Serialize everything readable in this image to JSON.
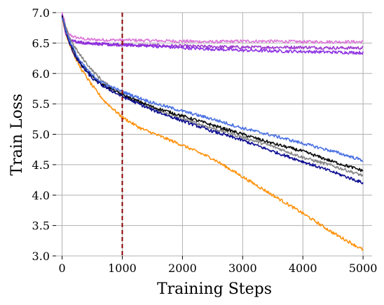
{
  "chart_data": {
    "type": "line",
    "xlabel": "Training Steps",
    "ylabel": "Train Loss",
    "xlim": [
      -100,
      5150
    ],
    "ylim": [
      3.0,
      7.0
    ],
    "xticks": [
      0,
      1000,
      2000,
      3000,
      4000,
      5000
    ],
    "xtick_labels": [
      "0",
      "1000",
      "2000",
      "3000",
      "4000",
      "5000"
    ],
    "yticks": [
      3.0,
      3.5,
      4.0,
      4.5,
      5.0,
      5.5,
      6.0,
      6.5,
      7.0
    ],
    "ytick_labels": [
      "3.0",
      "3.5",
      "4.0",
      "4.5",
      "5.0",
      "5.5",
      "6.0",
      "6.5",
      "7.0"
    ],
    "grid": true,
    "vline": {
      "x": 1000,
      "color": "#8b0000",
      "style": "dashed"
    },
    "series": [
      {
        "color": "#da70d6",
        "x": [
          0,
          30,
          60,
          100,
          200,
          400,
          700,
          1000,
          1500,
          2000,
          2500,
          3000,
          3500,
          4000,
          4500,
          5000
        ],
        "y": [
          7.0,
          6.9,
          6.75,
          6.65,
          6.6,
          6.56,
          6.55,
          6.55,
          6.54,
          6.53,
          6.52,
          6.53,
          6.53,
          6.52,
          6.52,
          6.52
        ]
      },
      {
        "color": "#9932cc",
        "x": [
          0,
          30,
          60,
          100,
          200,
          400,
          700,
          1000,
          1500,
          2000,
          2500,
          3000,
          3500,
          4000,
          4500,
          5000
        ],
        "y": [
          6.95,
          6.8,
          6.65,
          6.55,
          6.52,
          6.5,
          6.48,
          6.47,
          6.46,
          6.45,
          6.44,
          6.43,
          6.43,
          6.43,
          6.42,
          6.42
        ]
      },
      {
        "color": "#8a2be2",
        "x": [
          0,
          30,
          60,
          100,
          200,
          400,
          700,
          1000,
          1500,
          2000,
          2500,
          3000,
          3500,
          4000,
          4500,
          5000
        ],
        "y": [
          6.95,
          6.8,
          6.65,
          6.57,
          6.53,
          6.5,
          6.48,
          6.47,
          6.45,
          6.42,
          6.4,
          6.38,
          6.37,
          6.36,
          6.35,
          6.34
        ]
      },
      {
        "color": "#ff8c00",
        "x": [
          0,
          100,
          200,
          300,
          500,
          700,
          1000,
          1300,
          1600,
          2000,
          2500,
          3000,
          3500,
          4000,
          4500,
          5000
        ],
        "y": [
          6.9,
          6.55,
          6.3,
          6.1,
          5.8,
          5.55,
          5.28,
          5.1,
          4.98,
          4.82,
          4.6,
          4.3,
          4.0,
          3.7,
          3.38,
          3.1
        ]
      },
      {
        "color": "#808080",
        "x": [
          0,
          100,
          200,
          300,
          500,
          700,
          1000,
          1500,
          2000,
          2500,
          3000,
          3500,
          4000,
          4500,
          5000
        ],
        "y": [
          6.93,
          6.65,
          6.45,
          6.3,
          6.05,
          5.85,
          5.65,
          5.42,
          5.25,
          5.1,
          4.95,
          4.8,
          4.62,
          4.48,
          4.32
        ]
      },
      {
        "color": "#000000",
        "x": [
          0,
          100,
          200,
          300,
          500,
          700,
          1000,
          1500,
          2000,
          2500,
          3000,
          3500,
          4000,
          4500,
          5000
        ],
        "y": [
          6.93,
          6.58,
          6.35,
          6.18,
          5.95,
          5.8,
          5.65,
          5.45,
          5.3,
          5.15,
          5.0,
          4.85,
          4.72,
          4.55,
          4.4
        ]
      },
      {
        "color": "#00008b",
        "x": [
          0,
          100,
          200,
          300,
          500,
          700,
          1000,
          1500,
          2000,
          2500,
          3000,
          3500,
          4000,
          4500,
          5000
        ],
        "y": [
          6.93,
          6.55,
          6.32,
          6.15,
          5.92,
          5.78,
          5.62,
          5.4,
          5.22,
          5.05,
          4.9,
          4.72,
          4.55,
          4.38,
          4.2
        ]
      },
      {
        "color": "#4169e1",
        "x": [
          0,
          100,
          200,
          300,
          500,
          700,
          1000,
          1500,
          2000,
          2500,
          3000,
          3500,
          4000,
          4500,
          5000
        ],
        "y": [
          6.93,
          6.6,
          6.38,
          6.2,
          5.97,
          5.83,
          5.7,
          5.52,
          5.38,
          5.25,
          5.1,
          4.98,
          4.85,
          4.72,
          4.57
        ]
      }
    ]
  }
}
